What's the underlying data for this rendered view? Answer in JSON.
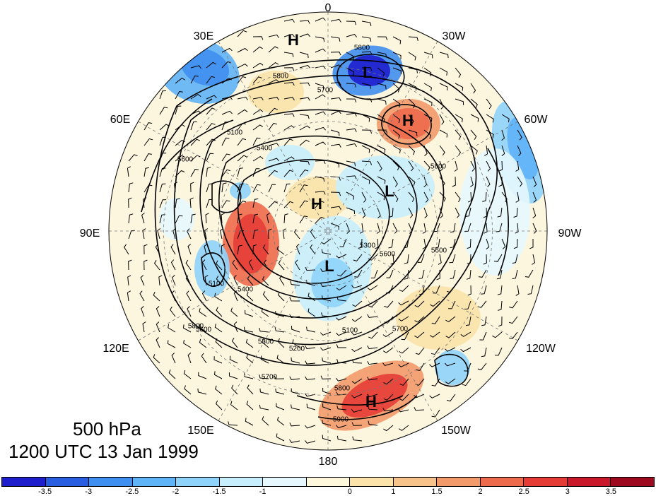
{
  "map": {
    "projection": "north-polar-stereographic",
    "longitude_labels": [
      {
        "text": "0",
        "lon": 0
      },
      {
        "text": "30W",
        "lon": -30
      },
      {
        "text": "60W",
        "lon": -60
      },
      {
        "text": "90W",
        "lon": -90
      },
      {
        "text": "120W",
        "lon": -120
      },
      {
        "text": "150W",
        "lon": -150
      },
      {
        "text": "180",
        "lon": 180
      },
      {
        "text": "150E",
        "lon": 150
      },
      {
        "text": "120E",
        "lon": 120
      },
      {
        "text": "90E",
        "lon": 90
      },
      {
        "text": "60E",
        "lon": 60
      },
      {
        "text": "30E",
        "lon": 30
      }
    ],
    "pressure_systems": [
      {
        "type": "H",
        "region": "near 0 longitude, mid-latitudes"
      },
      {
        "type": "L",
        "region": "north Atlantic near 30W"
      },
      {
        "type": "H",
        "region": "near 55W"
      },
      {
        "type": "H",
        "region": "Arctic near pole, Eurasian side"
      },
      {
        "type": "L",
        "region": "Canadian Arctic"
      },
      {
        "type": "L",
        "region": "Siberia / near 150E"
      },
      {
        "type": "H",
        "region": "north Pacific near 165W"
      }
    ],
    "contour_labels": [
      "5800",
      "5700",
      "5800",
      "5100",
      "5400",
      "5600",
      "5800",
      "5600",
      "5300",
      "5100",
      "5700",
      "5600",
      "5100",
      "5400",
      "5300",
      "5200",
      "5800",
      "5900",
      "5600",
      "5800",
      "5700"
    ]
  },
  "caption": {
    "level": "500 hPa",
    "datetime": "1200 UTC 13 Jan 1999"
  },
  "colorbar": {
    "colors": [
      "#1e1ecd",
      "#2a5ee0",
      "#3f8ff0",
      "#5fb3f7",
      "#8fd3fb",
      "#c6eefd",
      "#e6f8fe",
      "#fff8dc",
      "#fbe3aa",
      "#f7c38a",
      "#f29a6a",
      "#ee6a4d",
      "#e53d36",
      "#c8182a",
      "#9d0a1f"
    ],
    "ticks": [
      "-3.5",
      "-3",
      "-2.5",
      "-2",
      "-1.5",
      "-1",
      "0",
      "1",
      "1.5",
      "2",
      "2.5",
      "3",
      "3.5"
    ]
  }
}
